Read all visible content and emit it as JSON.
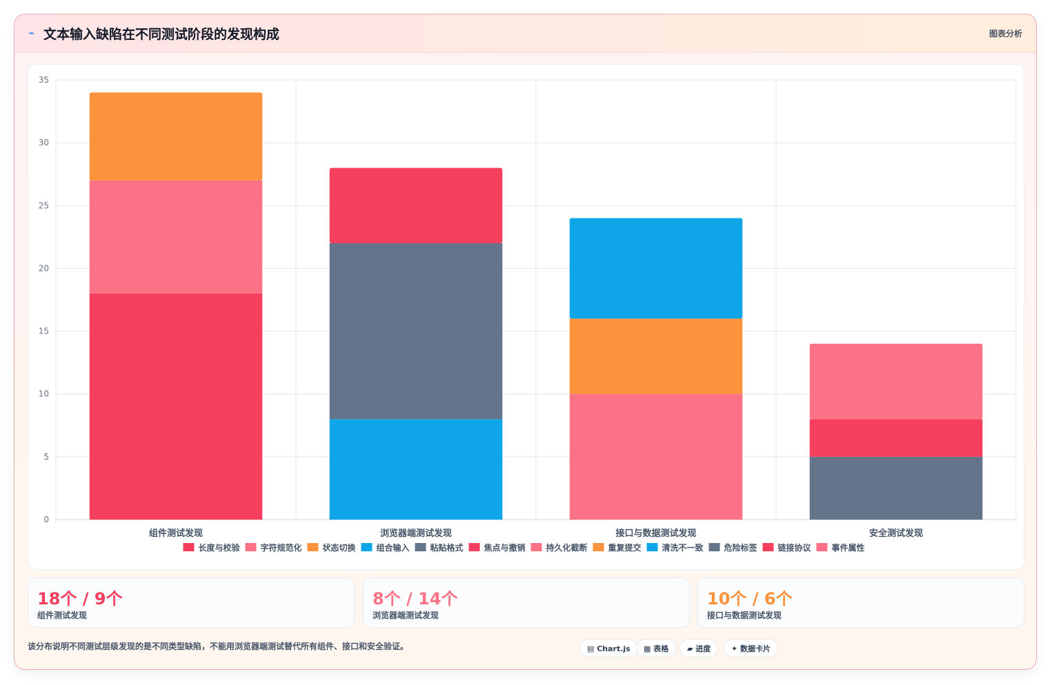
{
  "header": {
    "icon": "⌁",
    "title": "文本输入缺陷在不同测试阶段的发现构成",
    "tag": "图表分析"
  },
  "chart_data": {
    "type": "bar",
    "stacked": true,
    "categories": [
      "组件测试发现",
      "浏览器端测试发现",
      "接口与数据测试发现",
      "安全测试发现"
    ],
    "ylim": [
      0,
      35
    ],
    "yticks": [
      0,
      5,
      10,
      15,
      20,
      25,
      30,
      35
    ],
    "legend_position": "bottom",
    "grid": true,
    "series": [
      {
        "name": "长度与校验",
        "color": "#f43f5e",
        "values": [
          18,
          0,
          0,
          0
        ]
      },
      {
        "name": "字符规范化",
        "color": "#fb7185",
        "values": [
          9,
          0,
          0,
          0
        ]
      },
      {
        "name": "状态切换",
        "color": "#fb923c",
        "values": [
          7,
          0,
          0,
          0
        ]
      },
      {
        "name": "组合输入",
        "color": "#0ea5e9",
        "values": [
          0,
          8,
          0,
          0
        ]
      },
      {
        "name": "粘贴格式",
        "color": "#64748b",
        "values": [
          0,
          14,
          0,
          0
        ]
      },
      {
        "name": "焦点与撤销",
        "color": "#f43f5e",
        "values": [
          0,
          6,
          0,
          0
        ]
      },
      {
        "name": "持久化截断",
        "color": "#fb7185",
        "values": [
          0,
          0,
          10,
          0
        ]
      },
      {
        "name": "重复提交",
        "color": "#fb923c",
        "values": [
          0,
          0,
          6,
          0
        ]
      },
      {
        "name": "清洗不一致",
        "color": "#0ea5e9",
        "values": [
          0,
          0,
          8,
          0
        ]
      },
      {
        "name": "危险标签",
        "color": "#64748b",
        "values": [
          0,
          0,
          0,
          5
        ]
      },
      {
        "name": "链接协议",
        "color": "#f43f5e",
        "values": [
          0,
          0,
          0,
          3
        ]
      },
      {
        "name": "事件属性",
        "color": "#fb7185",
        "values": [
          0,
          0,
          0,
          6
        ]
      }
    ]
  },
  "stats": [
    {
      "value": "18个 / 9个",
      "label": "组件测试发现",
      "color": "#f43f5e"
    },
    {
      "value": "8个 / 14个",
      "label": "浏览器端测试发现",
      "color": "#fb7185"
    },
    {
      "value": "10个 / 6个",
      "label": "接口与数据测试发现",
      "color": "#fb923c"
    }
  ],
  "note": "该分布说明不同测试层级发现的是不同类型缺陷，不能用浏览器端测试替代所有组件、接口和安全验证。",
  "chips": [
    "▤ Chart.js",
    "▦ 表格",
    "▰ 进度",
    "✦ 数据卡片"
  ]
}
